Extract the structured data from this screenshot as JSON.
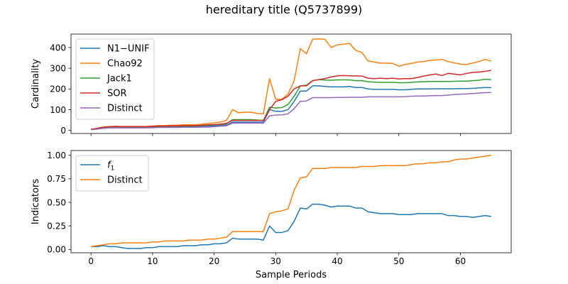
{
  "figure_title": "hereditary title (Q5737899)",
  "colors": {
    "blue": "#1f77b4",
    "orange": "#ff7f0e",
    "green": "#2ca02c",
    "red": "#d62728",
    "purple": "#9467bd"
  },
  "chart_data": [
    {
      "type": "line",
      "title": "",
      "xlabel": "",
      "ylabel": "Cardinality",
      "xlim": [
        -3.25,
        68.25
      ],
      "ylim": [
        -15,
        465
      ],
      "xticks": [
        0,
        10,
        20,
        30,
        40,
        50,
        60
      ],
      "show_x_tick_labels": false,
      "yticks": [
        0,
        100,
        200,
        300,
        400
      ],
      "grid": false,
      "legend_position": "upper-left",
      "x": [
        0,
        1,
        2,
        3,
        4,
        5,
        6,
        7,
        8,
        9,
        10,
        11,
        12,
        13,
        14,
        15,
        16,
        17,
        18,
        19,
        20,
        21,
        22,
        23,
        24,
        25,
        26,
        27,
        28,
        29,
        30,
        31,
        32,
        33,
        34,
        35,
        36,
        37,
        38,
        39,
        40,
        41,
        42,
        43,
        44,
        45,
        46,
        47,
        48,
        49,
        50,
        51,
        52,
        53,
        54,
        55,
        56,
        57,
        58,
        59,
        60,
        61,
        62,
        63,
        64,
        65
      ],
      "series": [
        {
          "name": "N1−UNIF",
          "color": "#1f77b4",
          "values": [
            5,
            8,
            12,
            14,
            15,
            14,
            14,
            14,
            14,
            14,
            16,
            17,
            17,
            18,
            18,
            19,
            19,
            19,
            20,
            21,
            22,
            23,
            26,
            40,
            40,
            40,
            40,
            40,
            40,
            100,
            92,
            92,
            100,
            140,
            190,
            190,
            215,
            215,
            212,
            210,
            210,
            210,
            212,
            207,
            207,
            200,
            198,
            198,
            198,
            198,
            196,
            196,
            198,
            200,
            200,
            200,
            201,
            201,
            201,
            201,
            202,
            202,
            203,
            205,
            207,
            206
          ]
        },
        {
          "name": "Chao92",
          "color": "#ff7f0e",
          "values": [
            5,
            10,
            16,
            18,
            20,
            19,
            19,
            19,
            19,
            19,
            21,
            23,
            23,
            25,
            25,
            27,
            27,
            27,
            30,
            34,
            36,
            40,
            48,
            100,
            85,
            88,
            88,
            82,
            80,
            250,
            150,
            150,
            175,
            240,
            395,
            370,
            440,
            442,
            440,
            400,
            413,
            416,
            420,
            386,
            376,
            335,
            330,
            325,
            325,
            323,
            310,
            318,
            323,
            330,
            332,
            338,
            340,
            343,
            332,
            326,
            320,
            318,
            325,
            332,
            343,
            334
          ]
        },
        {
          "name": "Jack1",
          "color": "#2ca02c",
          "values": [
            5,
            9,
            14,
            16,
            17,
            16,
            16,
            16,
            16,
            16,
            18,
            19,
            19,
            20,
            20,
            21,
            21,
            21,
            23,
            25,
            26,
            28,
            32,
            52,
            52,
            52,
            52,
            50,
            48,
            112,
            108,
            110,
            125,
            165,
            215,
            218,
            240,
            245,
            243,
            242,
            244,
            244,
            244,
            240,
            240,
            235,
            233,
            232,
            232,
            232,
            230,
            230,
            232,
            234,
            235,
            236,
            236,
            236,
            236,
            237,
            238,
            238,
            240,
            242,
            247,
            245
          ]
        },
        {
          "name": "SOR",
          "color": "#d62728",
          "values": [
            5,
            10,
            16,
            18,
            19,
            18,
            18,
            18,
            18,
            18,
            20,
            21,
            21,
            22,
            22,
            23,
            23,
            23,
            25,
            27,
            28,
            30,
            34,
            48,
            48,
            48,
            48,
            48,
            48,
            100,
            140,
            148,
            165,
            200,
            215,
            215,
            240,
            245,
            250,
            258,
            263,
            265,
            263,
            263,
            262,
            252,
            250,
            252,
            250,
            252,
            248,
            250,
            250,
            255,
            262,
            268,
            272,
            265,
            275,
            272,
            268,
            275,
            280,
            282,
            285,
            290
          ]
        },
        {
          "name": "Distinct",
          "color": "#9467bd",
          "values": [
            3,
            6,
            10,
            12,
            12,
            12,
            12,
            12,
            12,
            12,
            13,
            14,
            14,
            14,
            14,
            15,
            15,
            15,
            16,
            16,
            18,
            20,
            22,
            35,
            35,
            35,
            35,
            35,
            35,
            70,
            74,
            75,
            80,
            105,
            140,
            142,
            158,
            158,
            158,
            158,
            159,
            159,
            160,
            160,
            160,
            162,
            162,
            162,
            162,
            162,
            162,
            163,
            165,
            166,
            166,
            167,
            168,
            168,
            170,
            173,
            175,
            176,
            178,
            180,
            182,
            183
          ]
        }
      ]
    },
    {
      "type": "line",
      "title": "",
      "xlabel": "Sample Periods",
      "ylabel": "Indicators",
      "xlim": [
        -3.25,
        68.25
      ],
      "ylim": [
        -0.035,
        1.05
      ],
      "xticks": [
        0,
        10,
        20,
        30,
        40,
        50,
        60
      ],
      "show_x_tick_labels": true,
      "yticks": [
        0.0,
        0.25,
        0.5,
        0.75,
        1.0
      ],
      "ytick_labels": [
        "0.00",
        "0.25",
        "0.50",
        "0.75",
        "1.00"
      ],
      "grid": false,
      "legend_position": "upper-left",
      "x": [
        0,
        1,
        2,
        3,
        4,
        5,
        6,
        7,
        8,
        9,
        10,
        11,
        12,
        13,
        14,
        15,
        16,
        17,
        18,
        19,
        20,
        21,
        22,
        23,
        24,
        25,
        26,
        27,
        28,
        29,
        30,
        31,
        32,
        33,
        34,
        35,
        36,
        37,
        38,
        39,
        40,
        41,
        42,
        43,
        44,
        45,
        46,
        47,
        48,
        49,
        50,
        51,
        52,
        53,
        54,
        55,
        56,
        57,
        58,
        59,
        60,
        61,
        62,
        63,
        64,
        65
      ],
      "series": [
        {
          "name": "f",
          "name_subscript": "1",
          "color": "#1f77b4",
          "values": [
            0.03,
            0.03,
            0.04,
            0.03,
            0.03,
            0.02,
            0.01,
            0.01,
            0.01,
            0.02,
            0.02,
            0.03,
            0.03,
            0.03,
            0.03,
            0.04,
            0.04,
            0.04,
            0.05,
            0.05,
            0.06,
            0.06,
            0.07,
            0.12,
            0.11,
            0.11,
            0.11,
            0.11,
            0.1,
            0.25,
            0.18,
            0.18,
            0.2,
            0.3,
            0.44,
            0.43,
            0.48,
            0.48,
            0.47,
            0.45,
            0.46,
            0.46,
            0.46,
            0.44,
            0.44,
            0.4,
            0.39,
            0.38,
            0.38,
            0.38,
            0.37,
            0.37,
            0.37,
            0.38,
            0.38,
            0.38,
            0.38,
            0.38,
            0.36,
            0.36,
            0.35,
            0.35,
            0.34,
            0.35,
            0.36,
            0.35
          ]
        },
        {
          "name": "Distinct",
          "color": "#ff7f0e",
          "values": [
            0.03,
            0.04,
            0.05,
            0.06,
            0.06,
            0.07,
            0.07,
            0.07,
            0.07,
            0.07,
            0.08,
            0.08,
            0.09,
            0.09,
            0.09,
            0.09,
            0.1,
            0.1,
            0.1,
            0.11,
            0.11,
            0.12,
            0.13,
            0.19,
            0.19,
            0.19,
            0.19,
            0.19,
            0.19,
            0.38,
            0.4,
            0.41,
            0.43,
            0.63,
            0.76,
            0.77,
            0.86,
            0.86,
            0.86,
            0.87,
            0.87,
            0.87,
            0.87,
            0.87,
            0.88,
            0.88,
            0.88,
            0.89,
            0.89,
            0.89,
            0.89,
            0.89,
            0.9,
            0.91,
            0.91,
            0.92,
            0.92,
            0.93,
            0.93,
            0.95,
            0.96,
            0.96,
            0.97,
            0.98,
            0.99,
            1.0
          ]
        }
      ]
    }
  ]
}
